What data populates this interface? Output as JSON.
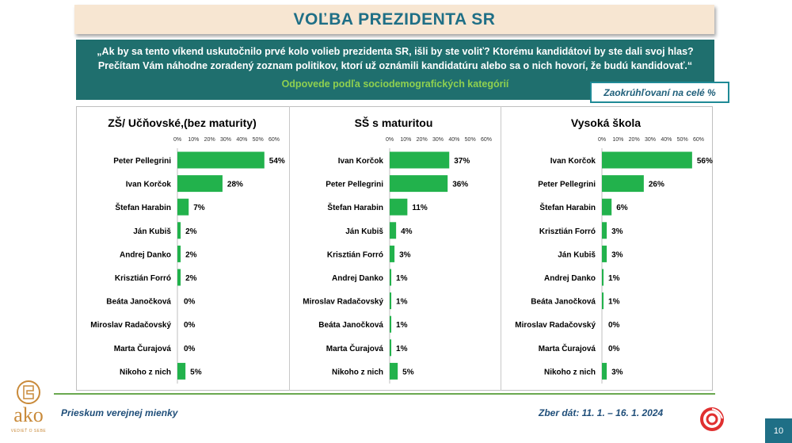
{
  "header": {
    "title": "VOĽBA PREZIDENTA SR"
  },
  "question": {
    "line1": "„Ak by sa tento víkend uskutočnilo prvé kolo volieb prezidenta SR, išli by ste voliť? Ktorému kandidátovi by ste dali svoj hlas?",
    "line2": "Prečítam Vám náhodne zoradený zoznam politikov, ktorí už oznámili kandidatúru alebo sa o nich hovorí, že budú kandidovať.“",
    "subtitle": "Odpovede podľa sociodemografických kategórií"
  },
  "note": {
    "rounding": "Zaokrúhľovaní na celé %"
  },
  "footer": {
    "survey": "Prieskum verejnej mienky",
    "dates": "Zber dát: 11. 1. – 16. 1. 2024",
    "page": "10"
  },
  "logo": {
    "text": "ako",
    "tagline": "VEDIEŤ O SEBE"
  },
  "colors": {
    "bar": "#22b24c",
    "title": "#1f6f86",
    "question_bg": "#1f6f6e",
    "subtitle": "#8fd04f"
  },
  "chart_data": [
    {
      "type": "bar",
      "orientation": "horizontal",
      "title": "ZŠ/ Učňovské,(bez maturity)",
      "ticks": [
        "0%",
        "10%",
        "20%",
        "30%",
        "40%",
        "50%",
        "60%"
      ],
      "xlim": [
        0,
        60
      ],
      "categories": [
        "Peter Pellegrini",
        "Ivan Korčok",
        "Štefan Harabin",
        "Ján Kubiš",
        "Andrej Danko",
        "Krisztián Forró",
        "Beáta Janočková",
        "Miroslav Radačovský",
        "Marta Čurajová",
        "Nikoho z nich"
      ],
      "values": [
        54,
        28,
        7,
        2,
        2,
        2,
        0,
        0,
        0,
        5
      ],
      "labels": [
        "54%",
        "28%",
        "7%",
        "2%",
        "2%",
        "2%",
        "0%",
        "0%",
        "0%",
        "5%"
      ]
    },
    {
      "type": "bar",
      "orientation": "horizontal",
      "title": "SŠ s maturitou",
      "ticks": [
        "0%",
        "10%",
        "20%",
        "30%",
        "40%",
        "50%",
        "60%"
      ],
      "xlim": [
        0,
        60
      ],
      "categories": [
        "Ivan Korčok",
        "Peter Pellegrini",
        "Štefan Harabin",
        "Ján Kubiš",
        "Krisztián Forró",
        "Andrej Danko",
        "Miroslav Radačovský",
        "Beáta Janočková",
        "Marta Čurajová",
        "Nikoho z nich"
      ],
      "values": [
        37,
        36,
        11,
        4,
        3,
        1,
        1,
        1,
        1,
        5
      ],
      "labels": [
        "37%",
        "36%",
        "11%",
        "4%",
        "3%",
        "1%",
        "1%",
        "1%",
        "1%",
        "5%"
      ]
    },
    {
      "type": "bar",
      "orientation": "horizontal",
      "title": "Vysoká škola",
      "ticks": [
        "0%",
        "10%",
        "20%",
        "30%",
        "40%",
        "50%",
        "60%"
      ],
      "xlim": [
        0,
        60
      ],
      "categories": [
        "Ivan Korčok",
        "Peter Pellegrini",
        "Štefan Harabin",
        "Krisztián Forró",
        "Ján Kubiš",
        "Andrej Danko",
        "Beáta Janočková",
        "Miroslav Radačovský",
        "Marta Čurajová",
        "Nikoho z nich"
      ],
      "values": [
        56,
        26,
        6,
        3,
        3,
        1,
        1,
        0,
        0,
        3
      ],
      "labels": [
        "56%",
        "26%",
        "6%",
        "3%",
        "3%",
        "1%",
        "1%",
        "0%",
        "0%",
        "3%"
      ]
    }
  ]
}
